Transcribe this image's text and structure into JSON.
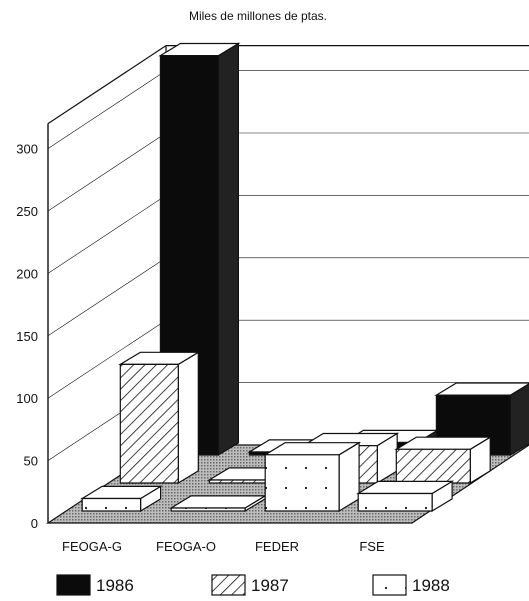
{
  "chart_data": {
    "type": "bar",
    "title": "Miles de millones de ptas.",
    "xlabel": "",
    "ylabel": "",
    "ylim": [
      0,
      300
    ],
    "yticks": [
      "0",
      "50",
      "100",
      "150",
      "200",
      "250",
      "300"
    ],
    "categories": [
      "FEOGA-G",
      "FEOGA-O",
      "FEDER",
      "FSE"
    ],
    "series": [
      {
        "name": "1986",
        "values": [
          320,
          1,
          10,
          48
        ]
      },
      {
        "name": "1987",
        "values": [
          95,
          2,
          30,
          27
        ]
      },
      {
        "name": "1988",
        "values": [
          10,
          2,
          45,
          14
        ]
      }
    ],
    "legend_position": "bottom",
    "grid": true
  },
  "colors": {
    "1986": "#0b0b0b",
    "1987": "#ffffff",
    "1988": "#ffffff",
    "floor": "#9a9a9a",
    "line": "#111111"
  }
}
